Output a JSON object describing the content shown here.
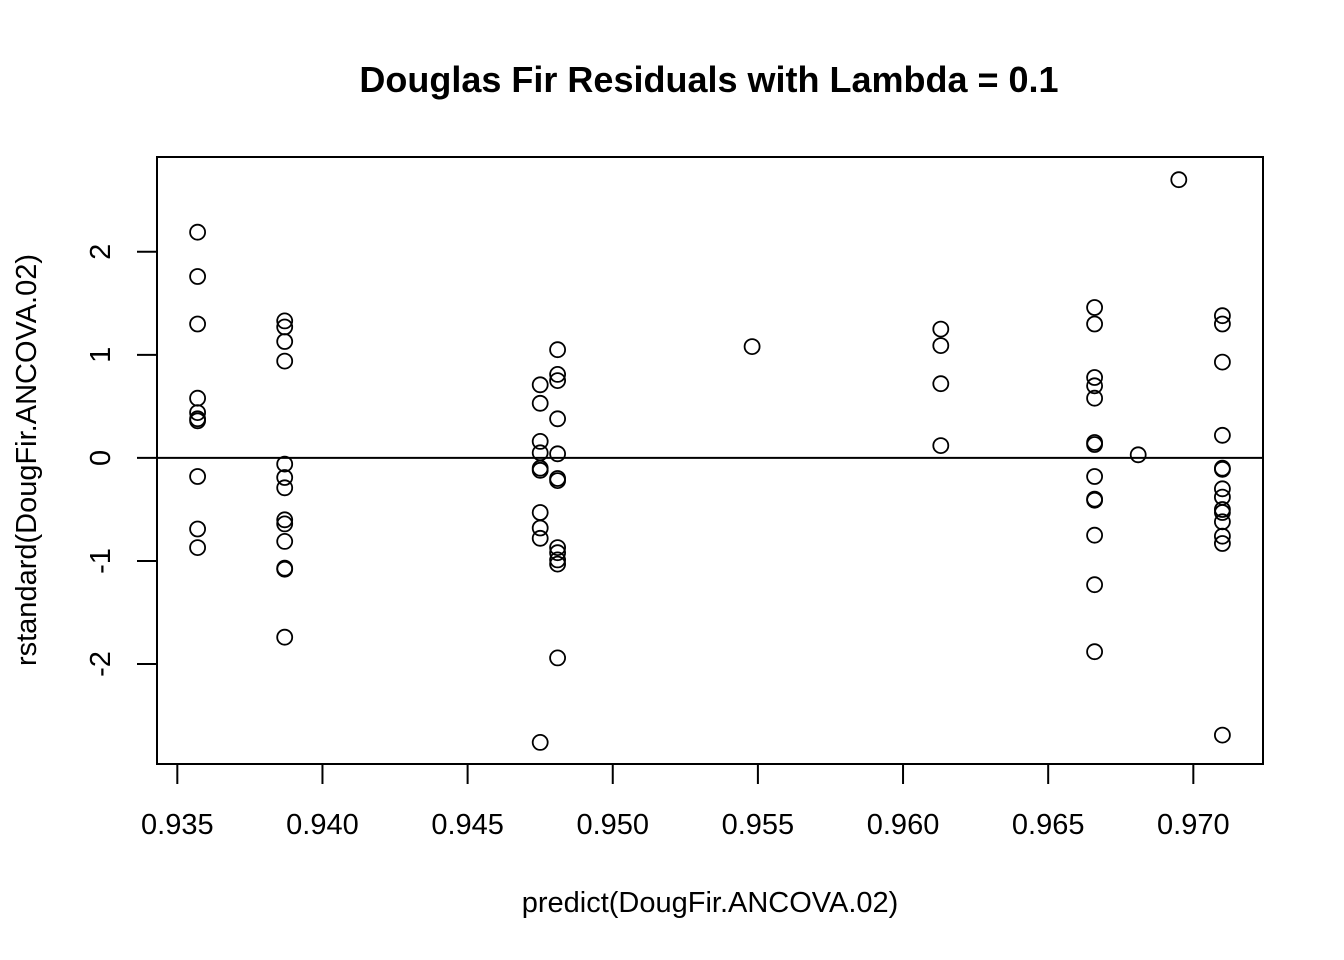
{
  "chart_data": {
    "type": "scatter",
    "title": "Douglas Fir Residuals with Lambda = 0.1",
    "xlabel": "predict(DougFir.ANCOVA.02)",
    "ylabel": "rstandard(DougFir.ANCOVA.02)",
    "xlim": [
      0.9343,
      0.9724
    ],
    "ylim": [
      -2.97,
      2.92
    ],
    "x_ticks": [
      0.935,
      0.94,
      0.945,
      0.95,
      0.955,
      0.96,
      0.965,
      0.97
    ],
    "x_tick_labels": [
      "0.935",
      "0.940",
      "0.945",
      "0.950",
      "0.955",
      "0.960",
      "0.965",
      "0.970"
    ],
    "y_ticks": [
      -2,
      -1,
      0,
      1,
      2
    ],
    "y_tick_labels": [
      "-2",
      "-1",
      "0",
      "1",
      "2"
    ],
    "hline": 0,
    "grid": false,
    "legend": "none",
    "colors": {
      "points": "#000000",
      "background": "#ffffff"
    },
    "points": [
      [
        0.9357,
        2.19
      ],
      [
        0.9357,
        1.76
      ],
      [
        0.9357,
        1.3
      ],
      [
        0.9357,
        0.58
      ],
      [
        0.9357,
        0.44
      ],
      [
        0.9357,
        0.38
      ],
      [
        0.9357,
        0.36
      ],
      [
        0.9357,
        -0.18
      ],
      [
        0.9357,
        -0.69
      ],
      [
        0.9357,
        -0.87
      ],
      [
        0.9387,
        1.33
      ],
      [
        0.9387,
        1.27
      ],
      [
        0.9387,
        1.13
      ],
      [
        0.9387,
        0.94
      ],
      [
        0.9387,
        -0.06
      ],
      [
        0.9387,
        -0.19
      ],
      [
        0.9387,
        -0.29
      ],
      [
        0.9387,
        -0.6
      ],
      [
        0.9387,
        -0.64
      ],
      [
        0.9387,
        -0.81
      ],
      [
        0.9387,
        -1.07
      ],
      [
        0.9387,
        -1.08
      ],
      [
        0.9387,
        -1.74
      ],
      [
        0.9475,
        0.71
      ],
      [
        0.9475,
        0.53
      ],
      [
        0.9475,
        0.16
      ],
      [
        0.9475,
        0.05
      ],
      [
        0.9475,
        -0.1
      ],
      [
        0.9475,
        -0.12
      ],
      [
        0.9475,
        -0.53
      ],
      [
        0.9475,
        -0.68
      ],
      [
        0.9475,
        -0.78
      ],
      [
        0.9475,
        -2.76
      ],
      [
        0.9481,
        1.05
      ],
      [
        0.9481,
        0.81
      ],
      [
        0.9481,
        0.75
      ],
      [
        0.9481,
        0.38
      ],
      [
        0.9481,
        0.04
      ],
      [
        0.9481,
        -0.2
      ],
      [
        0.9481,
        -0.22
      ],
      [
        0.9481,
        -0.87
      ],
      [
        0.9481,
        -0.92
      ],
      [
        0.9481,
        -0.99
      ],
      [
        0.9481,
        -1.03
      ],
      [
        0.9481,
        -1.94
      ],
      [
        0.9548,
        1.08
      ],
      [
        0.9613,
        1.25
      ],
      [
        0.9613,
        1.09
      ],
      [
        0.9613,
        0.72
      ],
      [
        0.9613,
        0.12
      ],
      [
        0.9666,
        1.46
      ],
      [
        0.9666,
        1.3
      ],
      [
        0.9666,
        0.78
      ],
      [
        0.9666,
        0.7
      ],
      [
        0.9666,
        0.58
      ],
      [
        0.9666,
        0.15
      ],
      [
        0.9666,
        0.13
      ],
      [
        0.9666,
        -0.18
      ],
      [
        0.9666,
        -0.4
      ],
      [
        0.9666,
        -0.41
      ],
      [
        0.9666,
        -0.75
      ],
      [
        0.9666,
        -1.23
      ],
      [
        0.9666,
        -1.88
      ],
      [
        0.9681,
        0.03
      ],
      [
        0.9695,
        2.7
      ],
      [
        0.971,
        1.38
      ],
      [
        0.971,
        1.3
      ],
      [
        0.971,
        0.93
      ],
      [
        0.971,
        0.22
      ],
      [
        0.971,
        -0.1
      ],
      [
        0.971,
        -0.11
      ],
      [
        0.971,
        -0.3
      ],
      [
        0.971,
        -0.38
      ],
      [
        0.971,
        -0.5
      ],
      [
        0.971,
        -0.53
      ],
      [
        0.971,
        -0.62
      ],
      [
        0.971,
        -0.76
      ],
      [
        0.971,
        -0.83
      ],
      [
        0.971,
        -2.69
      ]
    ]
  }
}
